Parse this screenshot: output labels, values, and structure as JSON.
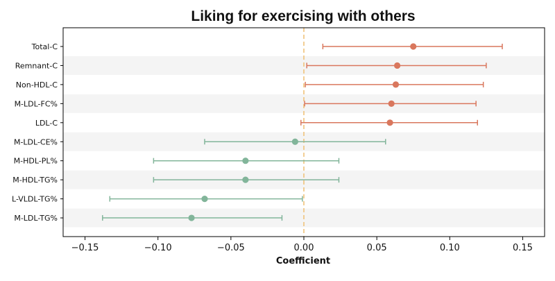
{
  "chart_data": {
    "type": "forest",
    "title": "Liking for exercising with others",
    "xlabel": "Coefficient",
    "ylabel": "",
    "xlim": [
      -0.165,
      0.165
    ],
    "xticks": [
      -0.15,
      -0.1,
      -0.05,
      0.0,
      0.05,
      0.1,
      0.15
    ],
    "xtick_labels": [
      "−0.15",
      "−0.10",
      "−0.05",
      "0.00",
      "0.05",
      "0.10",
      "0.15"
    ],
    "reference_line": 0.0,
    "colors": {
      "positive": "#d9775d",
      "negative": "#82b59a",
      "reference_line": "#f0c27a",
      "band": "#f4f4f4"
    },
    "rows": [
      {
        "label": "Total-C",
        "estimate": 0.075,
        "ci_low": 0.013,
        "ci_high": 0.136,
        "color": "positive"
      },
      {
        "label": "Remnant-C",
        "estimate": 0.064,
        "ci_low": 0.002,
        "ci_high": 0.125,
        "color": "positive"
      },
      {
        "label": "Non-HDL-C",
        "estimate": 0.063,
        "ci_low": 0.001,
        "ci_high": 0.123,
        "color": "positive"
      },
      {
        "label": "M-LDL-FC%",
        "estimate": 0.06,
        "ci_low": 0.0005,
        "ci_high": 0.118,
        "color": "positive"
      },
      {
        "label": "LDL-C",
        "estimate": 0.059,
        "ci_low": -0.002,
        "ci_high": 0.119,
        "color": "positive"
      },
      {
        "label": "M-LDL-CE%",
        "estimate": -0.006,
        "ci_low": -0.068,
        "ci_high": 0.056,
        "color": "negative"
      },
      {
        "label": "M-HDL-PL%",
        "estimate": -0.04,
        "ci_low": -0.103,
        "ci_high": 0.024,
        "color": "negative"
      },
      {
        "label": "M-HDL-TG%",
        "estimate": -0.04,
        "ci_low": -0.103,
        "ci_high": 0.024,
        "color": "negative"
      },
      {
        "label": "L-VLDL-TG%",
        "estimate": -0.068,
        "ci_low": -0.133,
        "ci_high": -0.001,
        "color": "negative"
      },
      {
        "label": "M-LDL-TG%",
        "estimate": -0.077,
        "ci_low": -0.138,
        "ci_high": -0.015,
        "color": "negative"
      }
    ]
  }
}
